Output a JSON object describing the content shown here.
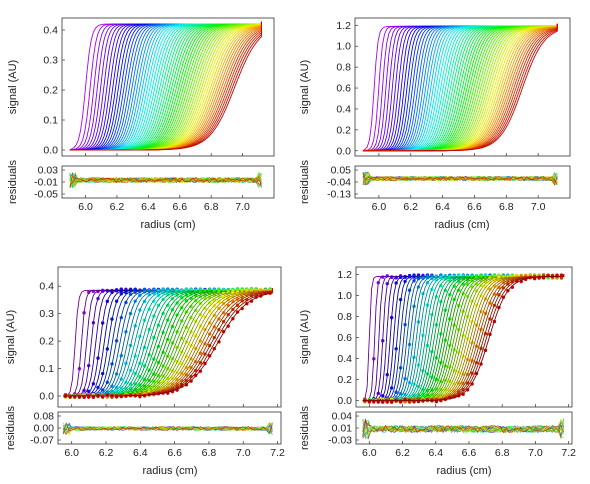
{
  "chart_data": [
    {
      "type": "line",
      "panel": "top-left",
      "xlabel": "radius (cm)",
      "ylabel": "signal (AU)",
      "residual_label": "residuals",
      "xlim": [
        5.85,
        7.2
      ],
      "ylim": [
        -0.02,
        0.44
      ],
      "xticks": [
        "6.0",
        "6.2",
        "6.4",
        "6.6",
        "6.8",
        "7.0"
      ],
      "yticks": [
        "0.0",
        "0.1",
        "0.2",
        "0.3",
        "0.4"
      ],
      "resid_ylim": [
        -0.06,
        0.04
      ],
      "resid_yticks": [
        "0.03",
        "-0.01",
        "-0.05"
      ],
      "series": {
        "count": 60,
        "meniscus": 5.9,
        "bottom": 7.12,
        "plateau": 0.42,
        "r_start": 6.0,
        "r_end": 6.95,
        "width_start": 0.06,
        "width_end": 0.25,
        "marker_stride": 0,
        "resid_amp": 0.008
      }
    },
    {
      "type": "line",
      "panel": "top-right",
      "xlabel": "radius (cm)",
      "ylabel": "signal (AU)",
      "residual_label": "residuals",
      "xlim": [
        5.85,
        7.2
      ],
      "ylim": [
        -0.05,
        1.27
      ],
      "xticks": [
        "6.0",
        "6.2",
        "6.4",
        "6.6",
        "6.8",
        "7.0"
      ],
      "yticks": [
        "0.0",
        "0.2",
        "0.4",
        "0.6",
        "0.8",
        "1.0",
        "1.2"
      ],
      "resid_ylim": [
        -0.15,
        0.07
      ],
      "resid_yticks": [
        "0.05",
        "-0.04",
        "-0.13"
      ],
      "series": {
        "count": 60,
        "meniscus": 5.9,
        "bottom": 7.12,
        "plateau": 1.19,
        "r_start": 5.97,
        "r_end": 6.9,
        "width_start": 0.04,
        "width_end": 0.22,
        "marker_stride": 0,
        "resid_amp": 0.015
      }
    },
    {
      "type": "scatter",
      "panel": "bottom-left",
      "xlabel": "radius (cm)",
      "ylabel": "signal (AU)",
      "residual_label": "residuals",
      "xlim": [
        5.92,
        7.22
      ],
      "ylim": [
        -0.04,
        0.47
      ],
      "xticks": [
        "6.0",
        "6.2",
        "6.4",
        "6.6",
        "6.8",
        "7.0",
        "7.2"
      ],
      "yticks": [
        "0.0",
        "0.1",
        "0.2",
        "0.3",
        "0.4"
      ],
      "resid_ylim": [
        -0.09,
        0.1
      ],
      "resid_yticks": [
        "0.08",
        "0.00",
        "-0.07"
      ],
      "series": {
        "count": 40,
        "meniscus": 5.95,
        "bottom": 7.17,
        "plateau": 0.385,
        "r_start": 6.02,
        "r_end": 6.85,
        "width_start": 0.03,
        "width_end": 0.28,
        "marker_stride": 7,
        "resid_amp": 0.012
      }
    },
    {
      "type": "scatter",
      "panel": "bottom-right",
      "xlabel": "radius (cm)",
      "ylabel": "signal (AU)",
      "residual_label": "residuals",
      "xlim": [
        5.92,
        7.22
      ],
      "ylim": [
        -0.06,
        1.27
      ],
      "xticks": [
        "6.0",
        "6.2",
        "6.4",
        "6.6",
        "6.8",
        "7.0",
        "7.2"
      ],
      "yticks": [
        "0.0",
        "0.2",
        "0.4",
        "0.6",
        "0.8",
        "1.0",
        "1.2"
      ],
      "resid_ylim": [
        -0.04,
        0.05
      ],
      "resid_yticks": [
        "0.04",
        "0.01",
        "-0.03"
      ],
      "series": {
        "count": 40,
        "meniscus": 5.96,
        "bottom": 7.17,
        "plateau": 1.18,
        "r_start": 6.0,
        "r_end": 6.72,
        "width_start": 0.02,
        "width_end": 0.18,
        "marker_stride": 7,
        "resid_amp": 0.01
      }
    }
  ]
}
